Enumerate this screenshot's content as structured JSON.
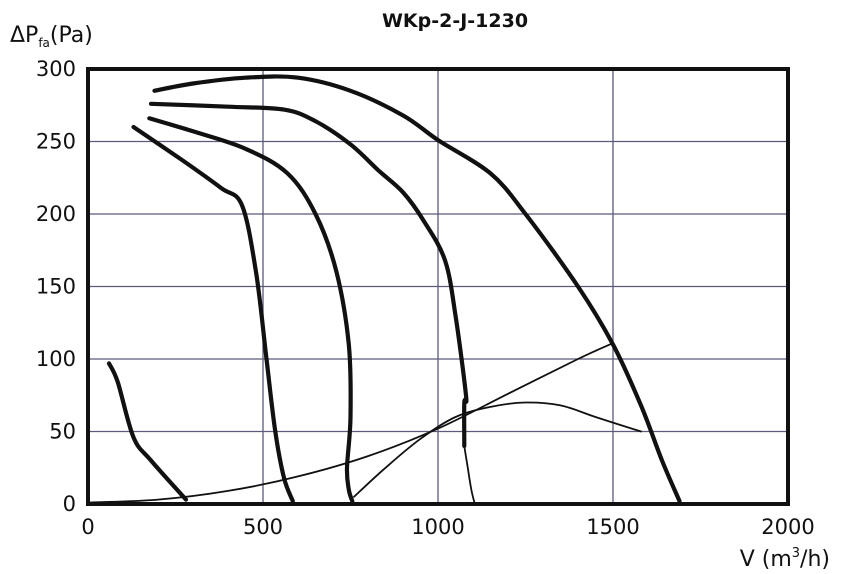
{
  "chart_data": {
    "type": "line",
    "title": "WKp-2-J-1230",
    "ylabel": {
      "main": "ΔP",
      "sub": "fa",
      "unit": "(Pa)"
    },
    "xlabel": {
      "main": "V (m",
      "sup": "3",
      "unit": "/h)"
    },
    "xlim": [
      0,
      2000
    ],
    "ylim": [
      0,
      300
    ],
    "xticks": [
      0,
      500,
      1000,
      1500,
      2000
    ],
    "yticks": [
      0,
      50,
      100,
      150,
      200,
      250,
      300
    ],
    "xtick_labels": [
      "0",
      "500",
      "1000",
      "1500",
      "2000"
    ],
    "ytick_labels": [
      "0",
      "50",
      "100",
      "150",
      "200",
      "250",
      "300"
    ],
    "grid": true,
    "series": [
      {
        "style": "thick",
        "points": [
          [
            190,
            285
          ],
          [
            300,
            290
          ],
          [
            450,
            294
          ],
          [
            600,
            294
          ],
          [
            750,
            285
          ],
          [
            900,
            268
          ],
          [
            1000,
            251
          ],
          [
            1150,
            228
          ],
          [
            1250,
            200
          ],
          [
            1400,
            150
          ],
          [
            1500,
            110
          ],
          [
            1580,
            68
          ],
          [
            1640,
            30
          ],
          [
            1690,
            2
          ]
        ]
      },
      {
        "style": "thick",
        "points": [
          [
            180,
            276
          ],
          [
            400,
            274
          ],
          [
            560,
            272
          ],
          [
            650,
            264
          ],
          [
            750,
            248
          ],
          [
            830,
            230
          ],
          [
            900,
            215
          ],
          [
            960,
            195
          ],
          [
            1020,
            168
          ],
          [
            1050,
            130
          ],
          [
            1080,
            75
          ],
          [
            1075,
            70
          ],
          [
            1075,
            40
          ]
        ]
      },
      {
        "style": "thick",
        "points": [
          [
            175,
            266
          ],
          [
            300,
            257
          ],
          [
            450,
            245
          ],
          [
            570,
            228
          ],
          [
            650,
            200
          ],
          [
            710,
            160
          ],
          [
            745,
            110
          ],
          [
            750,
            60
          ],
          [
            740,
            25
          ],
          [
            745,
            10
          ],
          [
            755,
            2
          ]
        ]
      },
      {
        "style": "thick",
        "points": [
          [
            130,
            260
          ],
          [
            270,
            237
          ],
          [
            380,
            218
          ],
          [
            440,
            206
          ],
          [
            480,
            160
          ],
          [
            510,
            100
          ],
          [
            535,
            50
          ],
          [
            560,
            18
          ],
          [
            585,
            2
          ]
        ]
      },
      {
        "style": "thick",
        "points": [
          [
            60,
            97
          ],
          [
            85,
            84
          ],
          [
            130,
            46
          ],
          [
            180,
            30
          ],
          [
            280,
            3
          ]
        ]
      },
      {
        "style": "thin",
        "points": [
          [
            0,
            1
          ],
          [
            200,
            3
          ],
          [
            400,
            9
          ],
          [
            600,
            19
          ],
          [
            800,
            33
          ],
          [
            1000,
            52
          ],
          [
            1200,
            76
          ],
          [
            1400,
            100
          ],
          [
            1500,
            111
          ]
        ]
      },
      {
        "style": "thin",
        "points": [
          [
            760,
            5
          ],
          [
            850,
            25
          ],
          [
            950,
            45
          ],
          [
            1050,
            60
          ],
          [
            1150,
            67
          ],
          [
            1250,
            70
          ],
          [
            1350,
            68
          ],
          [
            1450,
            60
          ],
          [
            1580,
            50
          ]
        ]
      },
      {
        "style": "thin",
        "points": [
          [
            1075,
            40
          ],
          [
            1085,
            25
          ],
          [
            1095,
            10
          ],
          [
            1105,
            0
          ]
        ]
      }
    ]
  }
}
